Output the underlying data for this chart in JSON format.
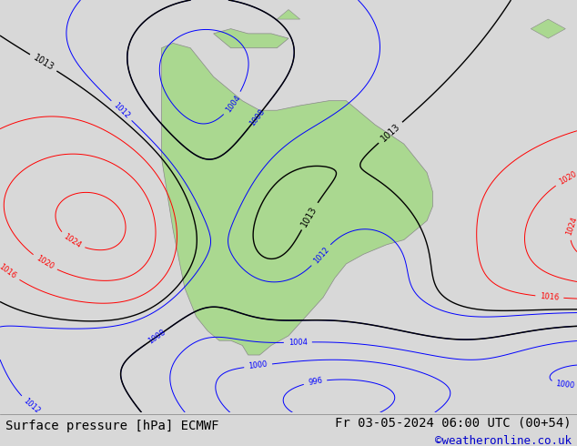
{
  "title_left": "Surface pressure [hPa] ECMWF",
  "title_right": "Fr 03-05-2024 06:00 UTC (00+54)",
  "watermark": "©weatheronline.co.uk",
  "bg_color": "#d8d8d8",
  "land_color": "#aad890",
  "ocean_color": "#d8d8d8",
  "title_fontsize": 10,
  "watermark_color": "#0000cc",
  "lon_min": -110,
  "lon_max": -10,
  "lat_min": -68,
  "lat_max": 18
}
